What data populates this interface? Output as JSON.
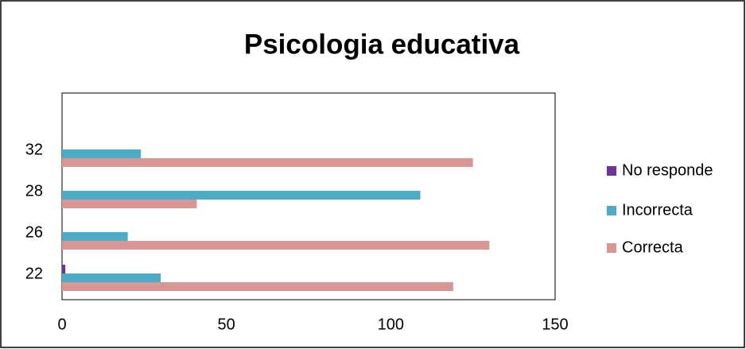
{
  "chart_data": {
    "type": "barh",
    "title": "Psicologia educativa",
    "categories": [
      "22",
      "26",
      "28",
      "32",
      null
    ],
    "series": [
      {
        "name": "No responde",
        "color": "#7030a0",
        "values": [
          1,
          0,
          0,
          0,
          null
        ]
      },
      {
        "name": "Incorrecta",
        "color": "#4bacc6",
        "values": [
          30,
          20,
          109,
          24,
          null
        ]
      },
      {
        "name": "Correcta",
        "color": "#d99694",
        "values": [
          119,
          130,
          41,
          125,
          null
        ]
      }
    ],
    "xlim": [
      0,
      150
    ],
    "xticks": [
      0,
      50,
      100,
      150
    ],
    "grid": false,
    "legend": "right"
  }
}
